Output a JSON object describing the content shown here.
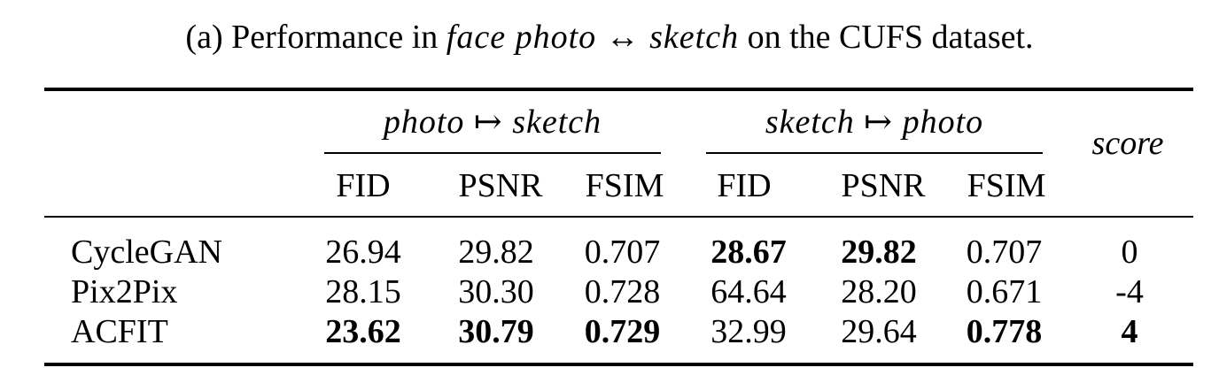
{
  "caption": {
    "prefix": "(a) Performance in ",
    "math": "face photo ↔ sketch",
    "suffix": " on the CUFS dataset."
  },
  "headers": {
    "group_left": "photo ↦ sketch",
    "group_right": "sketch ↦ photo",
    "score": "score",
    "sub": [
      "FID",
      "PSNR",
      "FSIM",
      "FID",
      "PSNR",
      "FSIM"
    ]
  },
  "rows": [
    {
      "model": "CycleGAN",
      "values": [
        "26.94",
        "29.82",
        "0.707",
        "28.67",
        "29.82",
        "0.707",
        "0"
      ],
      "bold": [
        false,
        false,
        false,
        true,
        true,
        false,
        false
      ]
    },
    {
      "model": "Pix2Pix",
      "values": [
        "28.15",
        "30.30",
        "0.728",
        "64.64",
        "28.20",
        "0.671",
        "-4"
      ],
      "bold": [
        false,
        false,
        false,
        false,
        false,
        false,
        false
      ]
    },
    {
      "model": "ACFIT",
      "values": [
        "23.62",
        "30.79",
        "0.729",
        "32.99",
        "29.64",
        "0.778",
        "4"
      ],
      "bold": [
        true,
        true,
        true,
        false,
        false,
        true,
        true
      ]
    }
  ]
}
